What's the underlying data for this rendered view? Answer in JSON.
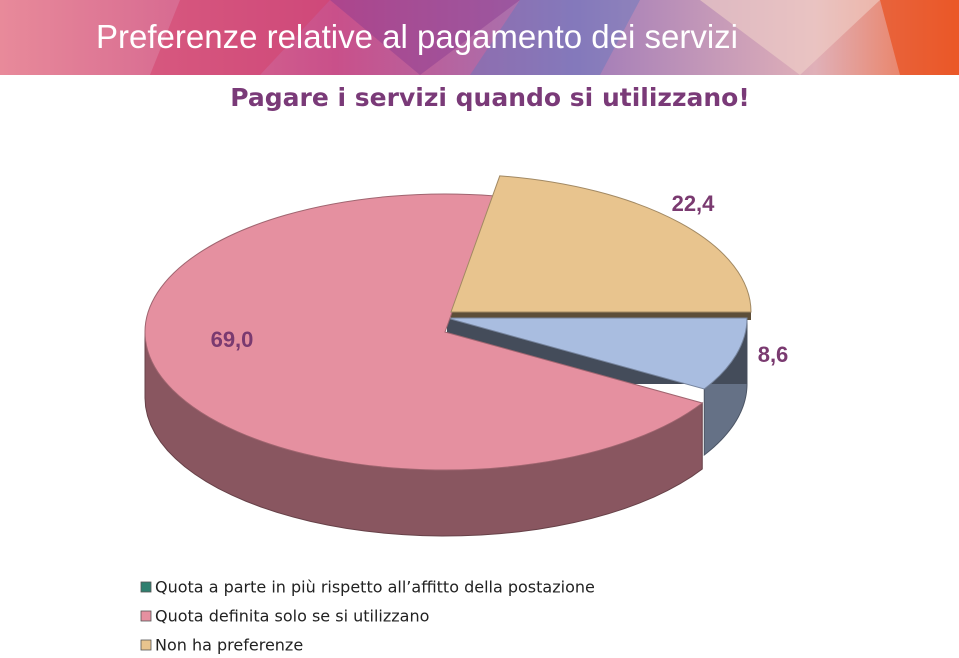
{
  "chart_data": {
    "type": "pie",
    "title": "Preferenze relative al pagamento dei servizi",
    "subtitle": "Pagare i servizi quando si utilizzano!",
    "categories": [
      "Quota a parte in più rispetto all’affitto della postazione",
      "Quota definita solo se si utilizzano",
      "Non ha preferenze"
    ],
    "values": [
      8.6,
      69.0,
      22.4
    ],
    "value_labels": [
      "8,6",
      "69,0",
      "22,4"
    ],
    "colors": [
      "#a9bde0",
      "#e590a0",
      "#e8c48e"
    ],
    "legend": "bottom-left"
  }
}
